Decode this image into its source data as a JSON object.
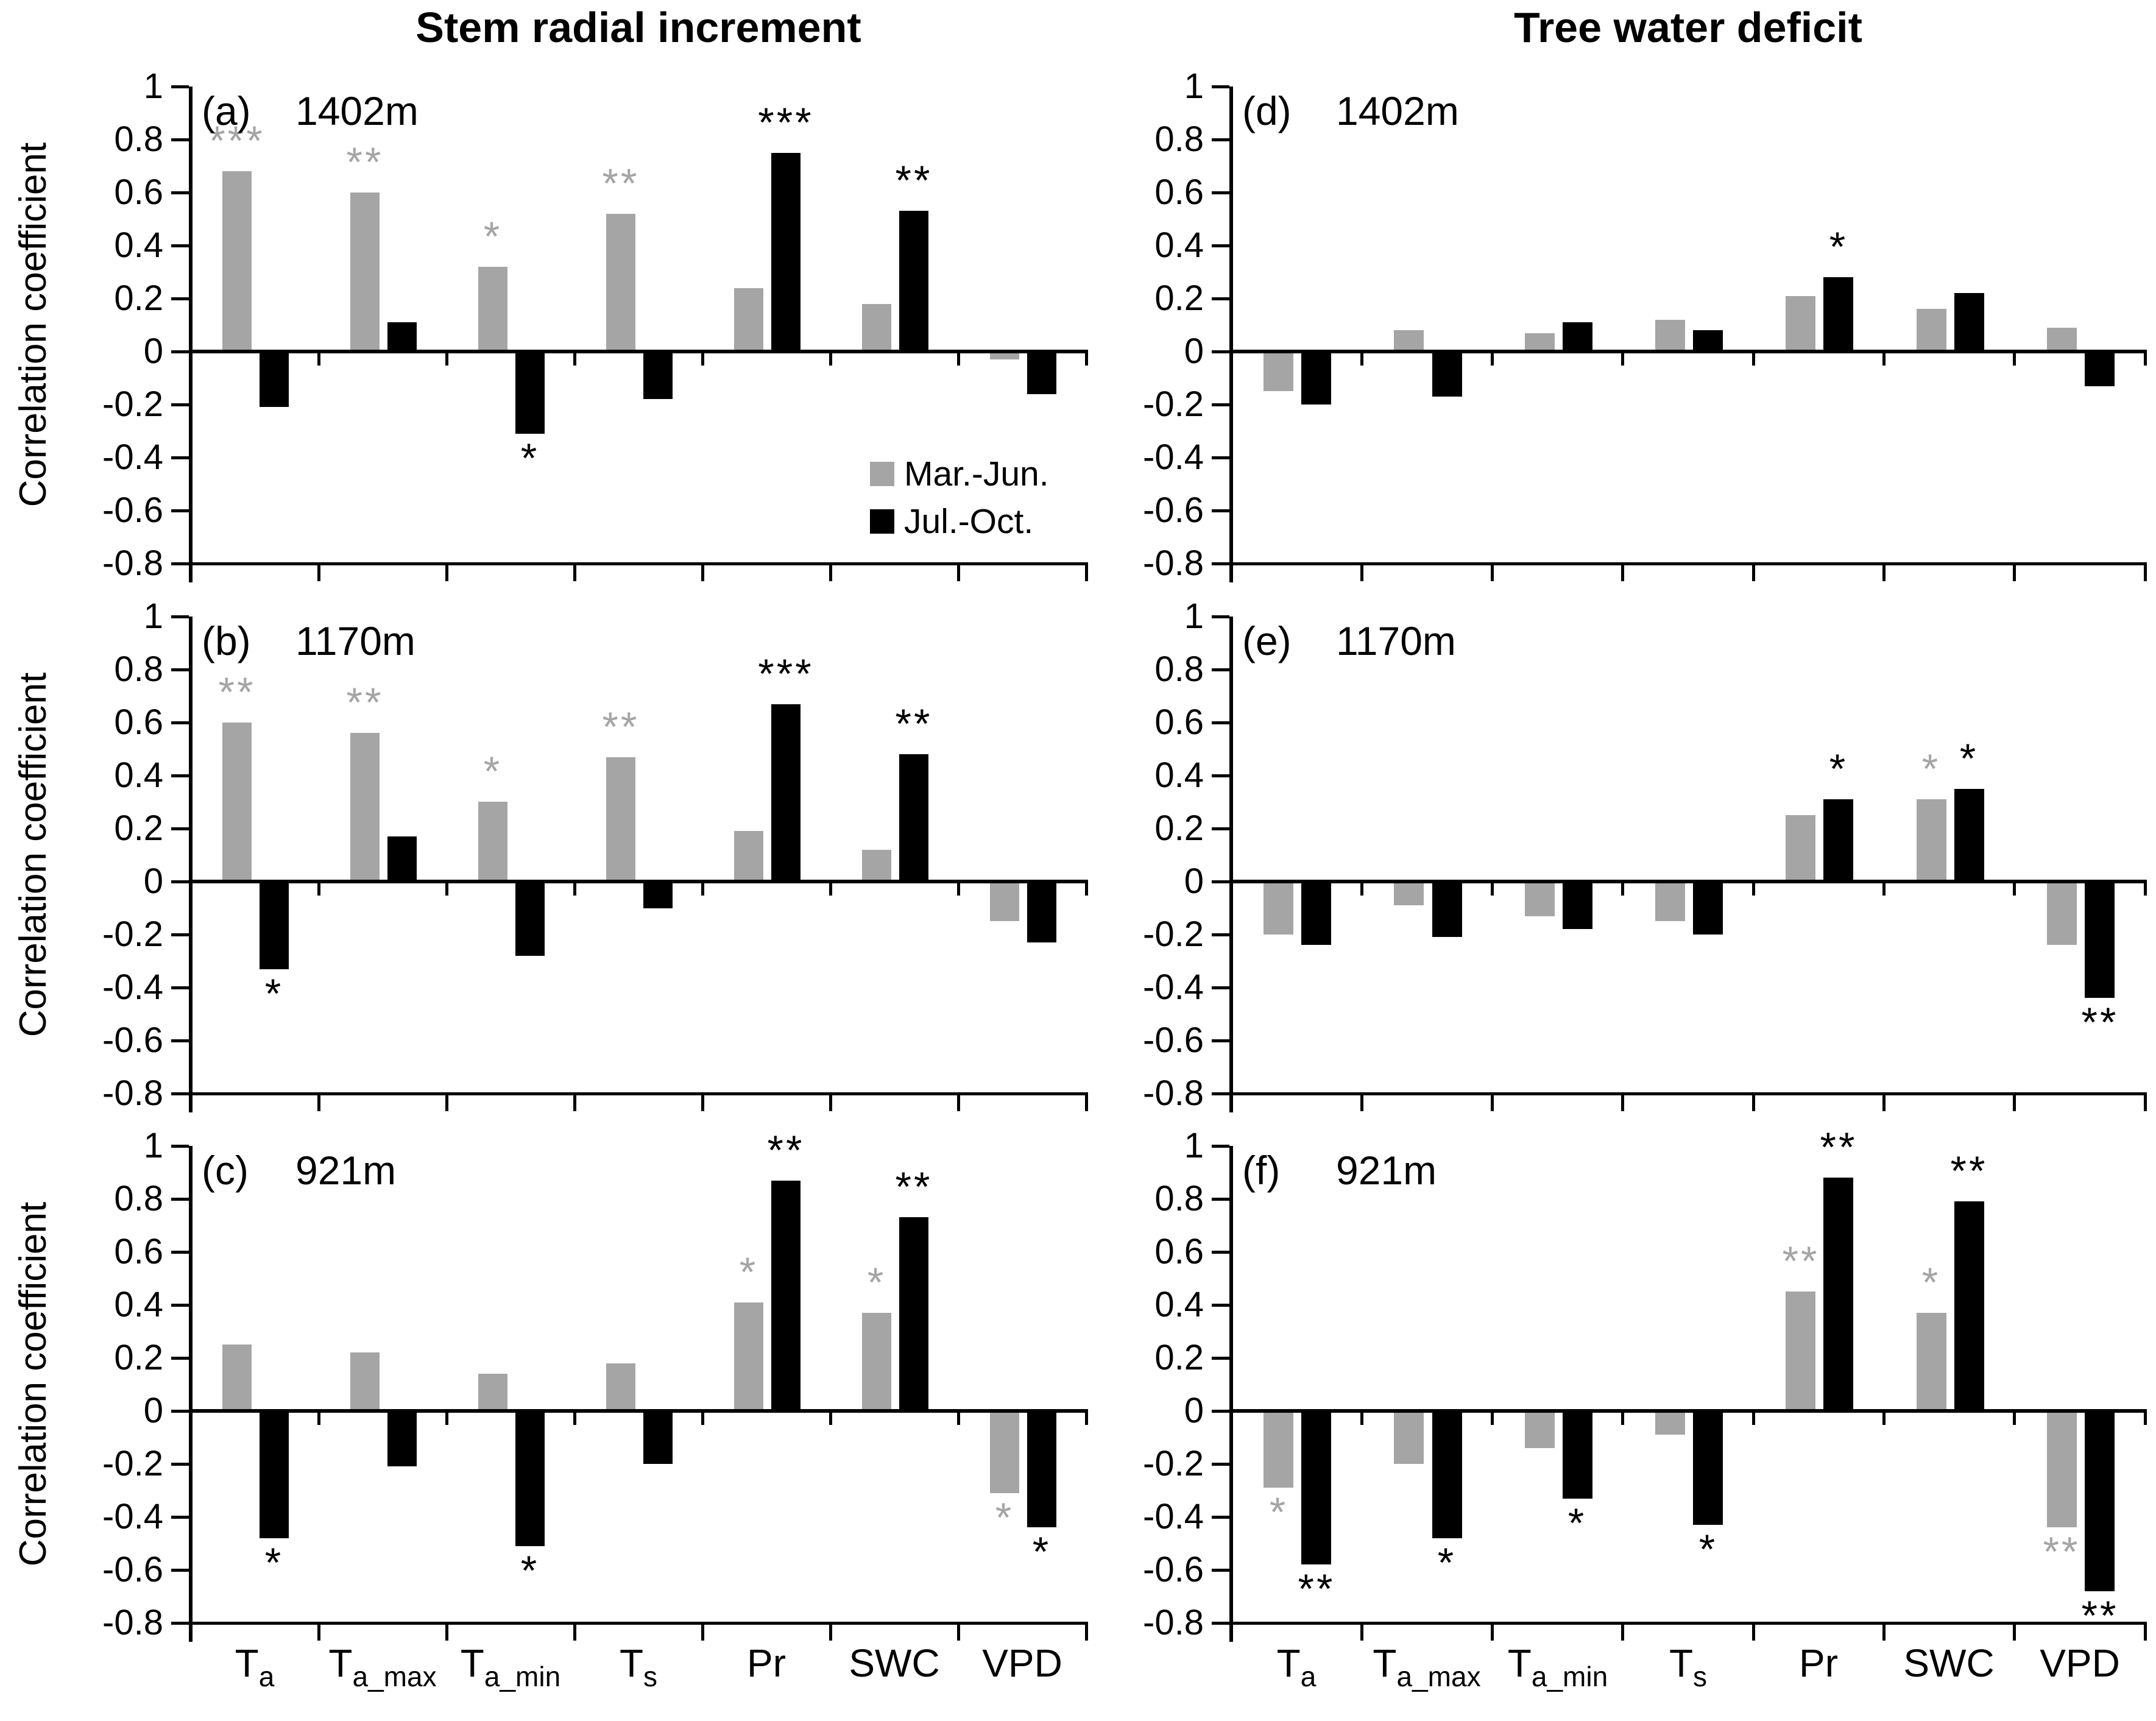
{
  "figure": {
    "column_titles": [
      "Stem radial increment",
      "Tree water deficit"
    ],
    "y_axis_title": "Correlation coefficient",
    "legend": {
      "items": [
        {
          "label": "Mar.-Jun.",
          "color": "#A5A5A5"
        },
        {
          "label": "Jul.-Oct.",
          "color": "#000000"
        }
      ]
    },
    "colors": {
      "bar_gray": "#A5A5A5",
      "bar_black": "#000000",
      "axis": "#000000",
      "background": "#FFFFFF"
    },
    "y_tick_labels": [
      "1",
      "0.8",
      "0.6",
      "0.4",
      "0.2",
      "0",
      "-0.2",
      "-0.4",
      "-0.6",
      "-0.8"
    ],
    "x_tick_labels": [
      {
        "main": "T",
        "sub": "a"
      },
      {
        "main": "T",
        "sub": "a_max"
      },
      {
        "main": "T",
        "sub": "a_min"
      },
      {
        "main": "T",
        "sub": "s"
      },
      {
        "main": "Pr",
        "sub": ""
      },
      {
        "main": "SWC",
        "sub": ""
      },
      {
        "main": "VPD",
        "sub": ""
      }
    ]
  },
  "chart_data": [
    {
      "id": "a",
      "type": "bar",
      "panel_label": "(a)",
      "elevation": "1402m",
      "group": "Stem radial increment",
      "ylabel": "Correlation coefficient",
      "ylim": [
        -0.8,
        1
      ],
      "categories": [
        "Ta",
        "Ta_max",
        "Ta_min",
        "Ts",
        "Pr",
        "SWC",
        "VPD"
      ],
      "series": [
        {
          "name": "Mar.-Jun.",
          "values": [
            0.68,
            0.6,
            0.32,
            0.52,
            0.24,
            0.18,
            -0.03
          ],
          "significance": [
            "***",
            "**",
            "*",
            "**",
            "",
            "",
            ""
          ]
        },
        {
          "name": "Jul.-Oct.",
          "values": [
            -0.21,
            0.11,
            -0.31,
            -0.18,
            0.75,
            0.53,
            -0.16
          ],
          "significance": [
            "",
            "",
            "*",
            "",
            "***",
            "**",
            ""
          ]
        }
      ]
    },
    {
      "id": "b",
      "type": "bar",
      "panel_label": "(b)",
      "elevation": "1170m",
      "group": "Stem radial increment",
      "ylabel": "Correlation coefficient",
      "ylim": [
        -0.8,
        1
      ],
      "categories": [
        "Ta",
        "Ta_max",
        "Ta_min",
        "Ts",
        "Pr",
        "SWC",
        "VPD"
      ],
      "series": [
        {
          "name": "Mar.-Jun.",
          "values": [
            0.6,
            0.56,
            0.3,
            0.47,
            0.19,
            0.12,
            -0.15
          ],
          "significance": [
            "**",
            "**",
            "*",
            "**",
            "",
            "",
            ""
          ]
        },
        {
          "name": "Jul.-Oct.",
          "values": [
            -0.33,
            0.17,
            -0.28,
            -0.1,
            0.67,
            0.48,
            -0.23
          ],
          "significance": [
            "*",
            "",
            "",
            "",
            "***",
            "**",
            ""
          ]
        }
      ]
    },
    {
      "id": "c",
      "type": "bar",
      "panel_label": "(c)",
      "elevation": "921m",
      "group": "Stem radial increment",
      "ylabel": "Correlation coefficient",
      "ylim": [
        -0.8,
        1
      ],
      "categories": [
        "Ta",
        "Ta_max",
        "Ta_min",
        "Ts",
        "Pr",
        "SWC",
        "VPD"
      ],
      "series": [
        {
          "name": "Mar.-Jun.",
          "values": [
            0.25,
            0.22,
            0.14,
            0.18,
            0.41,
            0.37,
            -0.31
          ],
          "significance": [
            "",
            "",
            "",
            "",
            "*",
            "*",
            "*"
          ]
        },
        {
          "name": "Jul.-Oct.",
          "values": [
            -0.48,
            -0.21,
            -0.51,
            -0.2,
            0.87,
            0.73,
            -0.44
          ],
          "significance": [
            "*",
            "",
            "*",
            "",
            "**",
            "**",
            "*"
          ]
        }
      ]
    },
    {
      "id": "d",
      "type": "bar",
      "panel_label": "(d)",
      "elevation": "1402m",
      "group": "Tree water deficit",
      "ylabel": "Correlation coefficient",
      "ylim": [
        -0.8,
        1
      ],
      "categories": [
        "Ta",
        "Ta_max",
        "Ta_min",
        "Ts",
        "Pr",
        "SWC",
        "VPD"
      ],
      "series": [
        {
          "name": "Mar.-Jun.",
          "values": [
            -0.15,
            0.08,
            0.07,
            0.12,
            0.21,
            0.16,
            0.09
          ],
          "significance": [
            "",
            "",
            "",
            "",
            "",
            "",
            ""
          ]
        },
        {
          "name": "Jul.-Oct.",
          "values": [
            -0.2,
            -0.17,
            0.11,
            0.08,
            0.28,
            0.22,
            -0.13
          ],
          "significance": [
            "",
            "",
            "",
            "",
            "*",
            "",
            ""
          ]
        }
      ]
    },
    {
      "id": "e",
      "type": "bar",
      "panel_label": "(e)",
      "elevation": "1170m",
      "group": "Tree water deficit",
      "ylabel": "Correlation coefficient",
      "ylim": [
        -0.8,
        1
      ],
      "categories": [
        "Ta",
        "Ta_max",
        "Ta_min",
        "Ts",
        "Pr",
        "SWC",
        "VPD"
      ],
      "series": [
        {
          "name": "Mar.-Jun.",
          "values": [
            -0.2,
            -0.09,
            -0.13,
            -0.15,
            0.25,
            0.31,
            -0.24
          ],
          "significance": [
            "",
            "",
            "",
            "",
            "",
            "*",
            ""
          ]
        },
        {
          "name": "Jul.-Oct.",
          "values": [
            -0.24,
            -0.21,
            -0.18,
            -0.2,
            0.31,
            0.35,
            -0.44
          ],
          "significance": [
            "",
            "",
            "",
            "",
            "*",
            "*",
            "**"
          ]
        }
      ]
    },
    {
      "id": "f",
      "type": "bar",
      "panel_label": "(f)",
      "elevation": "921m",
      "group": "Tree water deficit",
      "ylabel": "Correlation coefficient",
      "ylim": [
        -0.8,
        1
      ],
      "categories": [
        "Ta",
        "Ta_max",
        "Ta_min",
        "Ts",
        "Pr",
        "SWC",
        "VPD"
      ],
      "series": [
        {
          "name": "Mar.-Jun.",
          "values": [
            -0.29,
            -0.2,
            -0.14,
            -0.09,
            0.45,
            0.37,
            -0.44
          ],
          "significance": [
            "*",
            "",
            "",
            "",
            "**",
            "*",
            "**"
          ]
        },
        {
          "name": "Jul.-Oct.",
          "values": [
            -0.58,
            -0.48,
            -0.33,
            -0.43,
            0.88,
            0.79,
            -0.68
          ],
          "significance": [
            "**",
            "*",
            "*",
            "*",
            "**",
            "**",
            "**"
          ]
        }
      ]
    }
  ]
}
